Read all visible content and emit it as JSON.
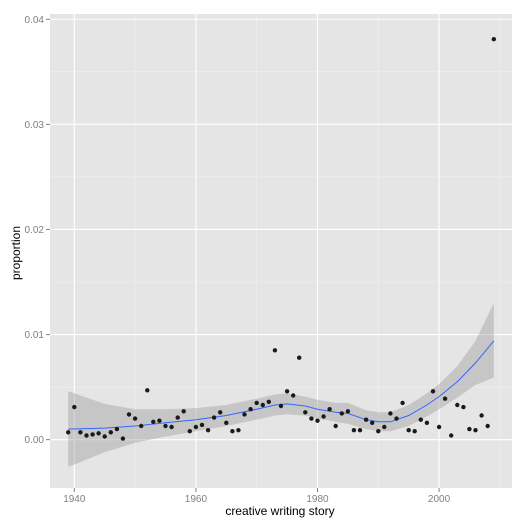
{
  "chart_data": {
    "type": "scatter",
    "title": "",
    "xlabel": "creative writing story",
    "ylabel": "proportion",
    "xlim": [
      1936,
      2012
    ],
    "ylim": [
      -0.0046,
      0.0405
    ],
    "x_ticks": [
      1940,
      1960,
      1980,
      2000
    ],
    "x_tick_labels": [
      "1940",
      "1960",
      "1980",
      "2000"
    ],
    "y_ticks": [
      0.0,
      0.01,
      0.02,
      0.03,
      0.04
    ],
    "y_tick_labels": [
      "0.00",
      "0.01",
      "0.02",
      "0.03",
      "0.04"
    ],
    "grid": true,
    "legend": "none",
    "colors": {
      "panel": "#e5e5e5",
      "grid_major": "#ffffff",
      "grid_minor": "#f2f2f2",
      "points": "#1a1a1a",
      "smooth_line": "#3366ff",
      "confidence_band": "#999999"
    },
    "points": {
      "x": [
        1939,
        1940,
        1941,
        1942,
        1943,
        1944,
        1945,
        1946,
        1947,
        1948,
        1949,
        1950,
        1951,
        1952,
        1953,
        1954,
        1955,
        1956,
        1957,
        1958,
        1959,
        1960,
        1961,
        1962,
        1963,
        1964,
        1965,
        1966,
        1967,
        1968,
        1969,
        1970,
        1971,
        1972,
        1973,
        1974,
        1975,
        1976,
        1977,
        1978,
        1979,
        1980,
        1981,
        1982,
        1983,
        1984,
        1985,
        1986,
        1987,
        1988,
        1989,
        1990,
        1991,
        1992,
        1993,
        1994,
        1995,
        1996,
        1997,
        1998,
        1999,
        2000,
        2001,
        2002,
        2003,
        2004,
        2005,
        2006,
        2007,
        2008,
        2009
      ],
      "y": [
        0.0007,
        0.0031,
        0.0007,
        0.0004,
        0.0005,
        0.0006,
        0.0003,
        0.0007,
        0.001,
        0.0001,
        0.0024,
        0.002,
        0.0013,
        0.0047,
        0.0017,
        0.0018,
        0.0013,
        0.0012,
        0.0021,
        0.0027,
        0.0008,
        0.0012,
        0.0014,
        0.0009,
        0.0021,
        0.0026,
        0.0016,
        0.0008,
        0.0009,
        0.0024,
        0.0029,
        0.0035,
        0.0033,
        0.0036,
        0.0085,
        0.0032,
        0.0046,
        0.0042,
        0.0078,
        0.0026,
        0.002,
        0.0018,
        0.0022,
        0.0029,
        0.0013,
        0.0025,
        0.0027,
        0.0009,
        0.0009,
        0.0019,
        0.0016,
        0.0008,
        0.0012,
        0.0025,
        0.002,
        0.0035,
        0.0009,
        0.0008,
        0.0019,
        0.0016,
        0.0046,
        0.0012,
        0.0039,
        0.0004,
        0.0033,
        0.0031,
        0.001,
        0.0009,
        0.0023,
        0.0013,
        0.0381
      ]
    },
    "smooth": {
      "x": [
        1939,
        1945,
        1950,
        1955,
        1960,
        1965,
        1970,
        1973,
        1975,
        1978,
        1980,
        1983,
        1985,
        1988,
        1990,
        1992,
        1995,
        1998,
        2000,
        2003,
        2006,
        2009
      ],
      "y": [
        0.001,
        0.0011,
        0.0013,
        0.0016,
        0.0019,
        0.0023,
        0.0029,
        0.0033,
        0.0034,
        0.0032,
        0.0029,
        0.0026,
        0.0025,
        0.0019,
        0.0017,
        0.0017,
        0.0023,
        0.0033,
        0.0041,
        0.0055,
        0.0073,
        0.0094
      ],
      "lower": [
        -0.0026,
        -0.0012,
        -0.0003,
        0.0003,
        0.0008,
        0.0013,
        0.0019,
        0.0023,
        0.0024,
        0.0023,
        0.002,
        0.0017,
        0.0015,
        0.001,
        0.0008,
        0.0008,
        0.0013,
        0.0022,
        0.0029,
        0.004,
        0.0052,
        0.0059
      ],
      "upper": [
        0.0046,
        0.0034,
        0.0029,
        0.0029,
        0.003,
        0.0033,
        0.0039,
        0.0043,
        0.0044,
        0.0041,
        0.0038,
        0.0035,
        0.0035,
        0.0028,
        0.0026,
        0.0026,
        0.0033,
        0.0044,
        0.0053,
        0.007,
        0.0094,
        0.013
      ]
    }
  }
}
